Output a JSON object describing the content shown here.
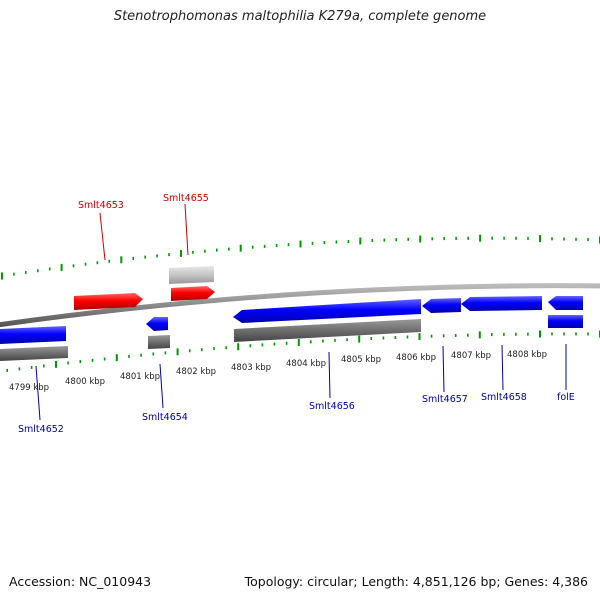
{
  "title": "Stenotrophomonas maltophilia K279a, complete genome",
  "footer": {
    "accession": "Accession: NC_010943",
    "summary": "Topology: circular; Length: 4,851,126 bp; Genes: 4,386"
  },
  "colors": {
    "backbone": "#888888",
    "cds_plus": "#ff0000",
    "cds_minus": "#0000ff",
    "gene_plus": "#c8c8c8",
    "gene_minus": "#707070",
    "tick_plus": "#009900",
    "tick_minus": "#009900",
    "label_plus": "#cc0000",
    "label_minus": "#0000aa"
  },
  "scale": {
    "ticks": [
      {
        "label": "4799 kbp"
      },
      {
        "label": "4800 kbp"
      },
      {
        "label": "4801 kbp"
      },
      {
        "label": "4802 kbp"
      },
      {
        "label": "4803 kbp"
      },
      {
        "label": "4804 kbp"
      },
      {
        "label": "4805 kbp"
      },
      {
        "label": "4806 kbp"
      },
      {
        "label": "4807 kbp"
      },
      {
        "label": "4808 kbp"
      }
    ]
  },
  "genes": [
    {
      "name": "Smlt4652",
      "strand": "minus"
    },
    {
      "name": "Smlt4653",
      "strand": "plus"
    },
    {
      "name": "Smlt4654",
      "strand": "minus"
    },
    {
      "name": "Smlt4655",
      "strand": "plus"
    },
    {
      "name": "Smlt4656",
      "strand": "minus"
    },
    {
      "name": "Smlt4657",
      "strand": "minus"
    },
    {
      "name": "Smlt4658",
      "strand": "minus"
    },
    {
      "name": "folE",
      "strand": "minus"
    }
  ]
}
